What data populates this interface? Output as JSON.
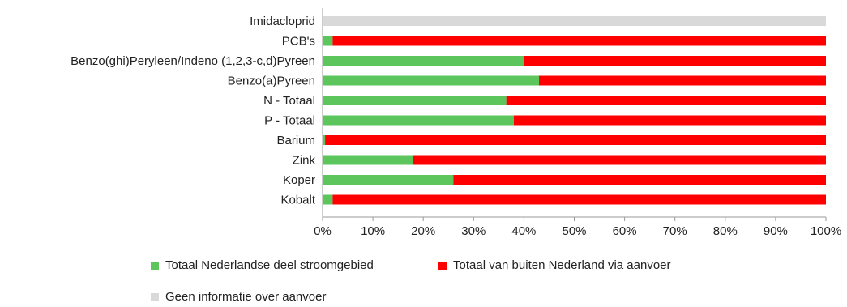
{
  "chart_data": {
    "type": "bar",
    "orientation": "horizontal",
    "stacked": true,
    "percent": true,
    "categories": [
      "Imidacloprid",
      "PCB's",
      "Benzo(ghi)Peryleen/Indeno (1,2,3-c,d)Pyreen",
      "Benzo(a)Pyreen",
      "N - Totaal",
      "P - Totaal",
      "Barium",
      "Zink",
      "Koper",
      "Kobalt"
    ],
    "series": [
      {
        "name": "Totaal Nederlandse deel stroomgebied",
        "color": "#5cc55c",
        "values": [
          0,
          2,
          40,
          43,
          36.5,
          38,
          0.5,
          18,
          26,
          2
        ]
      },
      {
        "name": "Totaal van buiten Nederland via aanvoer",
        "color": "#ff0000",
        "values": [
          0,
          98,
          60,
          57,
          63.5,
          62,
          99.5,
          82,
          74,
          98
        ]
      },
      {
        "name": "Geen informatie over aanvoer",
        "color": "#d9d9d9",
        "values": [
          100,
          0,
          0,
          0,
          0,
          0,
          0,
          0,
          0,
          0
        ]
      }
    ],
    "xlim": [
      0,
      100
    ],
    "xticks": [
      "0%",
      "10%",
      "20%",
      "30%",
      "40%",
      "50%",
      "60%",
      "70%",
      "80%",
      "90%",
      "100%"
    ],
    "legend_position": "bottom",
    "grid": false
  }
}
